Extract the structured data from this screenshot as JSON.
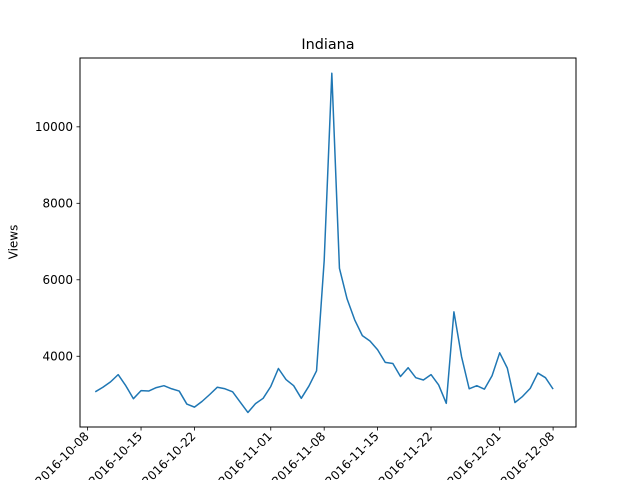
{
  "chart_data": {
    "type": "line",
    "title": "Indiana",
    "xlabel": "",
    "ylabel": "Views",
    "xlim": [
      "2016-10-07",
      "2016-12-11"
    ],
    "ylim": [
      2150,
      11800
    ],
    "grid": false,
    "legend": "none",
    "line_color": "#1f77b4",
    "x_ticks": [
      "2016-10-08",
      "2016-10-15",
      "2016-10-22",
      "2016-11-01",
      "2016-11-08",
      "2016-11-15",
      "2016-11-22",
      "2016-12-01",
      "2016-12-08"
    ],
    "x_tick_labels": [
      "2016-10-08",
      "2016-10-15",
      "2016-10-22",
      "2016-11-01",
      "2016-11-08",
      "2016-11-15",
      "2016-11-22",
      "2016-12-01",
      "2016-12-08"
    ],
    "y_ticks": [
      4000,
      6000,
      8000,
      10000
    ],
    "y_tick_labels": [
      "4000",
      "6000",
      "8000",
      "10000"
    ],
    "series": [
      {
        "x": [
          "2016-10-09",
          "2016-10-10",
          "2016-10-11",
          "2016-10-12",
          "2016-10-13",
          "2016-10-14",
          "2016-10-15",
          "2016-10-16",
          "2016-10-17",
          "2016-10-18",
          "2016-10-19",
          "2016-10-20",
          "2016-10-21",
          "2016-10-22",
          "2016-10-23",
          "2016-10-24",
          "2016-10-25",
          "2016-10-26",
          "2016-10-27",
          "2016-10-28",
          "2016-10-29",
          "2016-10-30",
          "2016-10-31",
          "2016-11-01",
          "2016-11-02",
          "2016-11-03",
          "2016-11-04",
          "2016-11-05",
          "2016-11-06",
          "2016-11-07",
          "2016-11-08",
          "2016-11-09",
          "2016-11-10",
          "2016-11-11",
          "2016-11-12",
          "2016-11-13",
          "2016-11-14",
          "2016-11-15",
          "2016-11-16",
          "2016-11-17",
          "2016-11-18",
          "2016-11-19",
          "2016-11-20",
          "2016-11-21",
          "2016-11-22",
          "2016-11-23",
          "2016-11-24",
          "2016-11-25",
          "2016-11-26",
          "2016-11-27",
          "2016-11-28",
          "2016-11-29",
          "2016-11-30",
          "2016-12-01",
          "2016-12-02",
          "2016-12-03",
          "2016-12-04",
          "2016-12-05",
          "2016-12-06",
          "2016-12-07",
          "2016-12-08"
        ],
        "values": [
          3070,
          3190,
          3330,
          3520,
          3230,
          2890,
          3100,
          3090,
          3180,
          3230,
          3150,
          3090,
          2750,
          2670,
          2820,
          3000,
          3190,
          3150,
          3070,
          2800,
          2530,
          2760,
          2900,
          3210,
          3680,
          3390,
          3230,
          2900,
          3220,
          3620,
          6500,
          11400,
          6300,
          5500,
          4950,
          4540,
          4400,
          4170,
          3840,
          3810,
          3470,
          3700,
          3440,
          3380,
          3520,
          3250,
          2770,
          5160,
          3990,
          3150,
          3230,
          3140,
          3490,
          4090,
          3690,
          2790,
          2950,
          3160,
          3560,
          3440,
          3140
        ]
      }
    ]
  }
}
